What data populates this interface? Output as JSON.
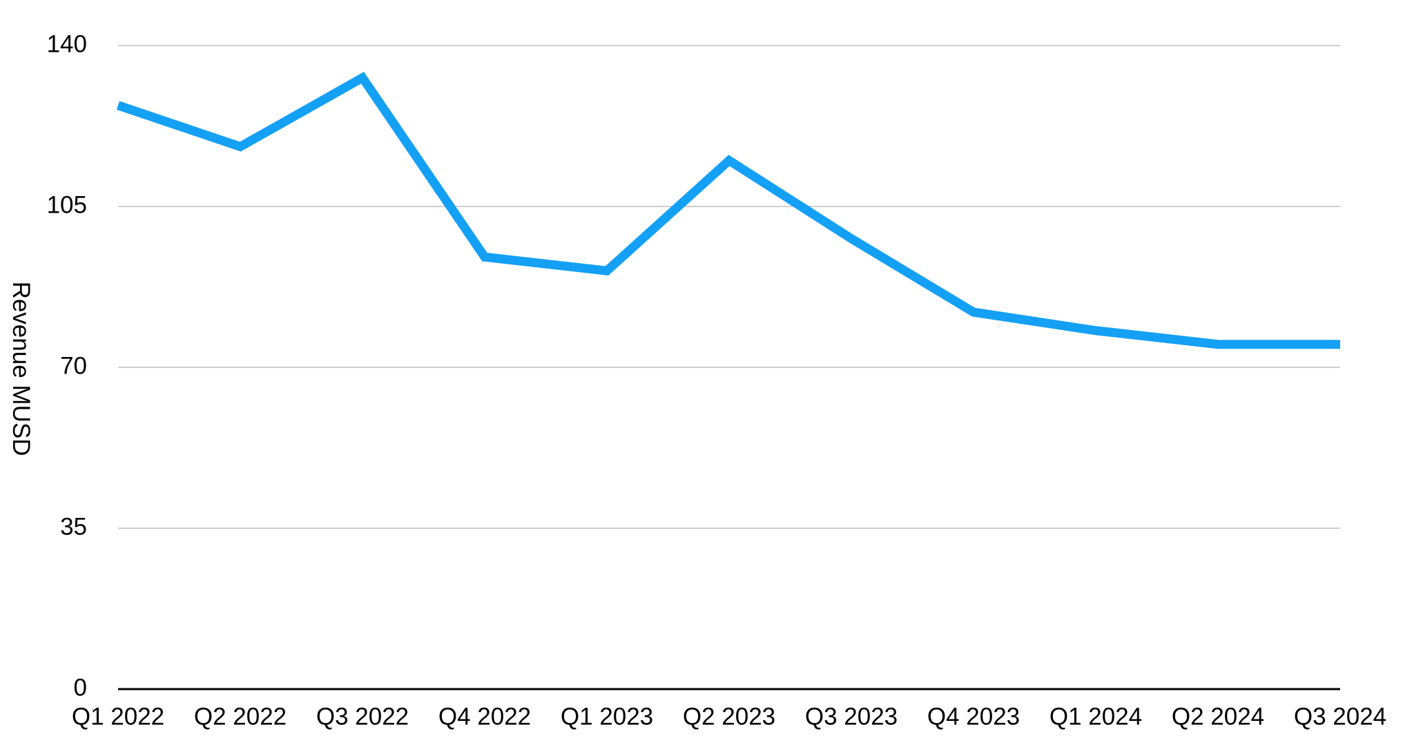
{
  "chart_data": {
    "type": "line",
    "y_label": "Revenue MUSD",
    "categories": [
      "Q1 2022",
      "Q2 2022",
      "Q3 2022",
      "Q4 2022",
      "Q1 2023",
      "Q2 2023",
      "Q3 2023",
      "Q4 2023",
      "Q1 2024",
      "Q2 2024",
      "Q3 2024"
    ],
    "values": [
      127,
      118,
      133,
      94,
      91,
      115,
      98,
      82,
      78,
      75,
      75
    ],
    "color": "#14a0f5",
    "ylim": [
      0,
      140
    ],
    "yticks": [
      0,
      35,
      70,
      105,
      140
    ],
    "grid": true
  }
}
